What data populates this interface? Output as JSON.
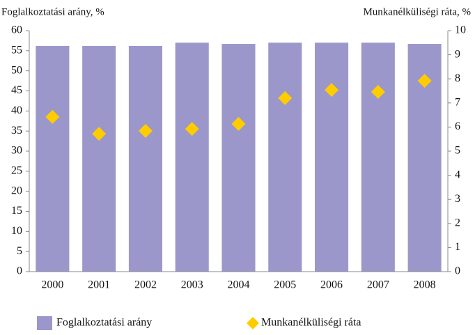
{
  "chart_data": {
    "type": "bar",
    "y_label": "Foglalkoztatási arány, %",
    "y2_label": "Munkanélküliségi ráta, %",
    "categories": [
      "2000",
      "2001",
      "2002",
      "2003",
      "2004",
      "2005",
      "2006",
      "2007",
      "2008"
    ],
    "series": [
      {
        "name": "Foglalkoztatási arány",
        "type": "bar",
        "color": "#9b97cb",
        "values": [
          56.2,
          56.2,
          56.2,
          57.0,
          56.7,
          57.0,
          57.0,
          57.0,
          56.7
        ]
      },
      {
        "name": "Munkanélküliségi ráta",
        "type": "scatter",
        "marker": "diamond",
        "color": "#ffcc00",
        "axis": "y2",
        "values": [
          6.42,
          5.72,
          5.84,
          5.92,
          6.13,
          7.2,
          7.54,
          7.46,
          7.92
        ]
      }
    ],
    "ylim": [
      0,
      60
    ],
    "yticks": [
      0,
      5,
      10,
      15,
      20,
      25,
      30,
      35,
      40,
      45,
      50,
      55,
      60
    ],
    "y2lim": [
      0,
      10
    ],
    "y2ticks": [
      0,
      1,
      2,
      3,
      4,
      5,
      6,
      7,
      8,
      9,
      10
    ],
    "legend": "bottom",
    "grid": false
  }
}
